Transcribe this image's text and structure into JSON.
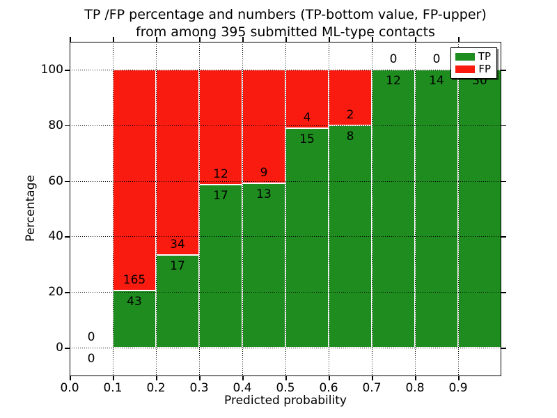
{
  "title": {
    "line1": "TP /FP percentage and numbers (TP-bottom value, FP-upper)",
    "line2": "from among 395 submitted ML-type contacts"
  },
  "chart_data": {
    "type": "bar",
    "stacked": true,
    "title": "TP /FP percentage and numbers (TP-bottom value, FP-upper) from among 395 submitted ML-type contacts",
    "xlabel": "Predicted probability",
    "ylabel": "Percentage",
    "xlim": [
      0.0,
      1.0
    ],
    "ylim": [
      -10,
      110
    ],
    "grid": "dotted-black-above-bars",
    "total_contacts": 395,
    "bin_width": 0.1,
    "xticks": [
      "0.0",
      "0.1",
      "0.2",
      "0.3",
      "0.4",
      "0.5",
      "0.6",
      "0.7",
      "0.8",
      "0.9"
    ],
    "yticks": [
      0,
      20,
      40,
      60,
      80,
      100
    ],
    "colors": {
      "tp": "#1e8c1e",
      "fp": "#fa1b10",
      "axis": "#000000",
      "background": "#ffffff"
    },
    "legend": {
      "position": "upper right",
      "entries": [
        {
          "label": "TP"
        },
        {
          "label": "FP"
        }
      ]
    },
    "series": [
      {
        "name": "TP",
        "values": [
          0,
          43,
          17,
          17,
          13,
          15,
          8,
          12,
          14,
          30
        ]
      },
      {
        "name": "FP",
        "values": [
          0,
          165,
          34,
          12,
          9,
          4,
          2,
          0,
          0,
          0
        ]
      }
    ],
    "bins": [
      {
        "range": [
          0.0,
          0.1
        ],
        "tp": 0,
        "fp": 0,
        "tp_pct": 0.0
      },
      {
        "range": [
          0.1,
          0.2
        ],
        "tp": 43,
        "fp": 165,
        "tp_pct": 20.67
      },
      {
        "range": [
          0.2,
          0.3
        ],
        "tp": 17,
        "fp": 34,
        "tp_pct": 33.33
      },
      {
        "range": [
          0.3,
          0.4
        ],
        "tp": 17,
        "fp": 12,
        "tp_pct": 58.62
      },
      {
        "range": [
          0.4,
          0.5
        ],
        "tp": 13,
        "fp": 9,
        "tp_pct": 59.09
      },
      {
        "range": [
          0.5,
          0.6
        ],
        "tp": 15,
        "fp": 4,
        "tp_pct": 78.95
      },
      {
        "range": [
          0.6,
          0.7
        ],
        "tp": 8,
        "fp": 2,
        "tp_pct": 80.0
      },
      {
        "range": [
          0.7,
          0.8
        ],
        "tp": 12,
        "fp": 0,
        "tp_pct": 100.0
      },
      {
        "range": [
          0.8,
          0.9
        ],
        "tp": 14,
        "fp": 0,
        "tp_pct": 100.0
      },
      {
        "range": [
          0.9,
          1.0
        ],
        "tp": 30,
        "fp": 0,
        "tp_pct": 100.0
      }
    ]
  }
}
